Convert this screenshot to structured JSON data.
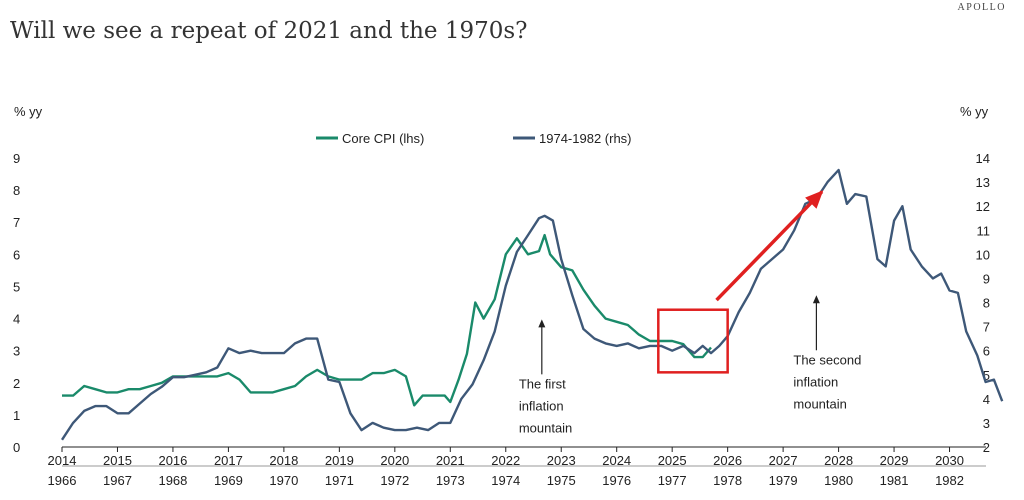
{
  "title": "Will we see a repeat of 2021 and the 1970s?",
  "brand": "APOLLO",
  "chart_data": {
    "type": "line",
    "title": "Will we see a repeat of 2021 and the 1970s?",
    "ylabel_left": "% yy",
    "ylabel_right": "% yy",
    "ylim_left": [
      0,
      9
    ],
    "ylim_right": [
      2,
      14
    ],
    "yticks_left": [
      0,
      1,
      2,
      3,
      4,
      5,
      6,
      7,
      8,
      9
    ],
    "yticks_right": [
      2,
      3,
      4,
      5,
      6,
      7,
      8,
      9,
      10,
      11,
      12,
      13,
      14
    ],
    "xlim": [
      2014,
      2031
    ],
    "xticks_top": [
      "2014",
      "2015",
      "2016",
      "2017",
      "2018",
      "2019",
      "2020",
      "2021",
      "2022",
      "2023",
      "2024",
      "2025",
      "2026",
      "2027",
      "2028",
      "2029",
      "2030"
    ],
    "xticks_bottom": [
      "1966",
      "1967",
      "1968",
      "1969",
      "1970",
      "1971",
      "1972",
      "1973",
      "1974",
      "1975",
      "1976",
      "1977",
      "1978",
      "1979",
      "1980",
      "1981",
      "1982"
    ],
    "grid": false,
    "legend_position": "top-center",
    "series": [
      {
        "name": "Core CPI (lhs)",
        "axis": "left",
        "color": "#1a8a6a",
        "x": [
          2014.0,
          2014.2,
          2014.4,
          2014.6,
          2014.8,
          2015.0,
          2015.2,
          2015.4,
          2015.6,
          2015.8,
          2016.0,
          2016.2,
          2016.4,
          2016.6,
          2016.8,
          2017.0,
          2017.2,
          2017.4,
          2017.6,
          2017.8,
          2018.0,
          2018.2,
          2018.4,
          2018.6,
          2018.8,
          2019.0,
          2019.2,
          2019.4,
          2019.6,
          2019.8,
          2020.0,
          2020.2,
          2020.35,
          2020.5,
          2020.7,
          2020.9,
          2021.0,
          2021.15,
          2021.3,
          2021.45,
          2021.6,
          2021.8,
          2022.0,
          2022.2,
          2022.4,
          2022.6,
          2022.7,
          2022.8,
          2023.0,
          2023.2,
          2023.4,
          2023.6,
          2023.8,
          2024.0,
          2024.2,
          2024.4,
          2024.6,
          2024.8,
          2025.0,
          2025.2,
          2025.4,
          2025.55,
          2025.7
        ],
        "y": [
          1.6,
          1.6,
          1.9,
          1.8,
          1.7,
          1.7,
          1.8,
          1.8,
          1.9,
          2.0,
          2.2,
          2.2,
          2.2,
          2.2,
          2.2,
          2.3,
          2.1,
          1.7,
          1.7,
          1.7,
          1.8,
          1.9,
          2.2,
          2.4,
          2.2,
          2.1,
          2.1,
          2.1,
          2.3,
          2.3,
          2.4,
          2.2,
          1.3,
          1.6,
          1.6,
          1.6,
          1.4,
          2.1,
          2.9,
          4.5,
          4.0,
          4.6,
          6.0,
          6.5,
          6.0,
          6.1,
          6.6,
          6.0,
          5.6,
          5.5,
          4.9,
          4.4,
          4.0,
          3.9,
          3.8,
          3.5,
          3.3,
          3.3,
          3.3,
          3.2,
          2.8,
          2.8,
          3.1
        ]
      },
      {
        "name": "1974-1982 (rhs)",
        "axis": "right",
        "color": "#3e5878",
        "x": [
          2014.0,
          2014.2,
          2014.4,
          2014.6,
          2014.8,
          2015.0,
          2015.2,
          2015.4,
          2015.6,
          2015.8,
          2016.0,
          2016.2,
          2016.4,
          2016.6,
          2016.8,
          2017.0,
          2017.2,
          2017.4,
          2017.6,
          2017.8,
          2018.0,
          2018.2,
          2018.4,
          2018.6,
          2018.8,
          2019.0,
          2019.2,
          2019.4,
          2019.6,
          2019.8,
          2020.0,
          2020.2,
          2020.4,
          2020.6,
          2020.8,
          2021.0,
          2021.2,
          2021.4,
          2021.6,
          2021.8,
          2022.0,
          2022.2,
          2022.4,
          2022.6,
          2022.7,
          2022.85,
          2023.0,
          2023.2,
          2023.4,
          2023.6,
          2023.8,
          2024.0,
          2024.2,
          2024.4,
          2024.6,
          2024.8,
          2025.0,
          2025.2,
          2025.4,
          2025.55,
          2025.7,
          2025.85,
          2026.0,
          2026.2,
          2026.4,
          2026.6,
          2026.8,
          2027.0,
          2027.2,
          2027.4,
          2027.6,
          2027.8,
          2028.0,
          2028.15,
          2028.3,
          2028.5,
          2028.7,
          2028.85,
          2029.0,
          2029.15,
          2029.3,
          2029.5,
          2029.7,
          2029.85,
          2030.0,
          2030.15,
          2030.3,
          2030.5,
          2030.65,
          2030.8,
          2030.95
        ],
        "y": [
          2.3,
          3.0,
          3.5,
          3.7,
          3.7,
          3.4,
          3.4,
          3.8,
          4.2,
          4.5,
          4.9,
          4.9,
          5.0,
          5.1,
          5.3,
          6.1,
          5.9,
          6.0,
          5.9,
          5.9,
          5.9,
          6.3,
          6.5,
          6.5,
          4.8,
          4.7,
          3.4,
          2.7,
          3.0,
          2.8,
          2.7,
          2.7,
          2.8,
          2.7,
          3.0,
          3.0,
          4.0,
          4.6,
          5.6,
          6.8,
          8.7,
          10.1,
          10.8,
          11.5,
          11.6,
          11.4,
          9.8,
          8.3,
          6.9,
          6.5,
          6.3,
          6.2,
          6.3,
          6.1,
          6.2,
          6.2,
          6.0,
          6.2,
          5.9,
          6.2,
          5.9,
          6.2,
          6.6,
          7.6,
          8.4,
          9.4,
          9.8,
          10.2,
          11.0,
          12.1,
          12.3,
          13.0,
          13.5,
          12.1,
          12.5,
          12.4,
          9.8,
          9.5,
          11.4,
          12.0,
          10.2,
          9.5,
          9.0,
          9.2,
          8.5,
          8.4,
          6.8,
          5.8,
          4.7,
          4.8,
          3.9
        ]
      }
    ],
    "annotations": [
      {
        "lines": [
          "The first",
          "inflation",
          "mountain"
        ],
        "x": 2022.65,
        "y_right": 7.3
      },
      {
        "lines": [
          "The second",
          "inflation",
          "mountain"
        ],
        "x": 2027.6,
        "y_right": 8.3
      }
    ],
    "highlight_box": {
      "x_range": [
        2024.75,
        2026.0
      ],
      "y_right_range": [
        5.1,
        7.7
      ],
      "color": "#e02020"
    },
    "arrow": {
      "from": [
        2025.8,
        8.1
      ],
      "to": [
        2027.7,
        12.6
      ],
      "color": "#e02020"
    }
  }
}
